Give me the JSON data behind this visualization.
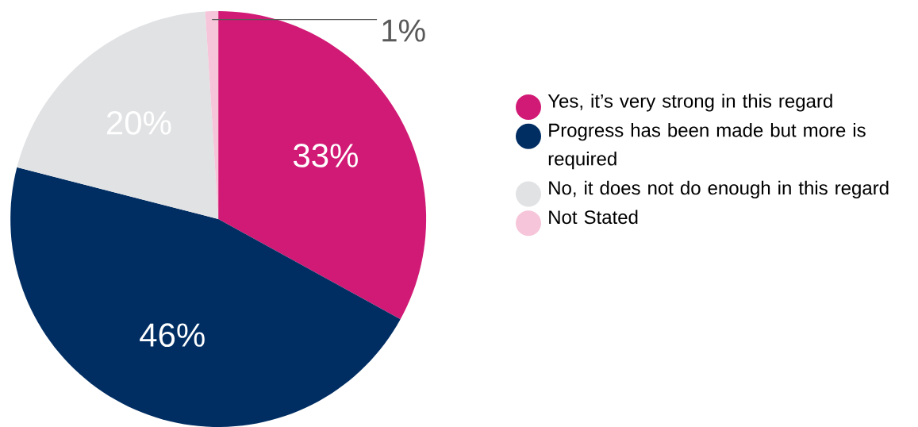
{
  "chart_data": {
    "type": "pie",
    "categories": [
      "Yes, it’s very strong in this regard",
      "Progress has been made but more is required",
      "No, it does not do enough in this regard",
      "Not Stated"
    ],
    "values": [
      33,
      46,
      20,
      1
    ],
    "colors": [
      "#d11a75",
      "#002e63",
      "#e1e2e4",
      "#f6c5d9"
    ],
    "value_labels": [
      "33%",
      "46%",
      "20%",
      "1%"
    ],
    "legend": "right"
  }
}
